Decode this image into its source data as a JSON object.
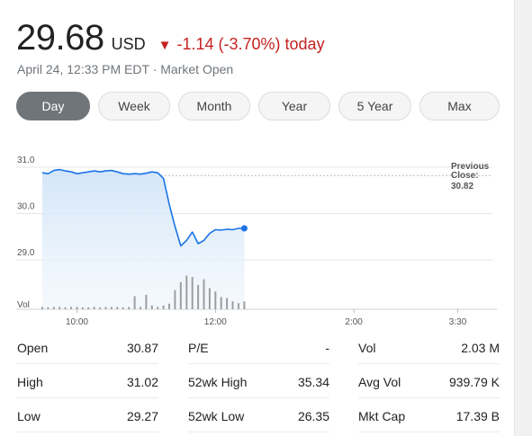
{
  "quote": {
    "price": "29.68",
    "currency": "USD",
    "change": "-1.14 (-3.70%) today",
    "arrow_icon": "triangle-down-icon",
    "timestamp": "April 24, 12:33 PM EDT",
    "separator": " · ",
    "market_status": "Market Open",
    "down_color": "#c5221f"
  },
  "tabs": [
    {
      "label": "Day",
      "active": true
    },
    {
      "label": "Week",
      "active": false
    },
    {
      "label": "Month",
      "active": false
    },
    {
      "label": "Year",
      "active": false
    },
    {
      "label": "5 Year",
      "active": false
    },
    {
      "label": "Max",
      "active": false
    }
  ],
  "chart_data": {
    "type": "line",
    "y_ticks": [
      "31.0",
      "30.0",
      "29.0"
    ],
    "y_tick_values": [
      31.0,
      30.0,
      29.0
    ],
    "x_ticks": [
      "10:00",
      "12:00",
      "2:00",
      "3:30"
    ],
    "x_tick_minutes": [
      600,
      720,
      840,
      930
    ],
    "x_range_minutes": [
      570,
      960
    ],
    "ylim": [
      28.0,
      31.25
    ],
    "vol_label": "Vol",
    "previous_close_label_1": "Previous",
    "previous_close_label_2": "Close:",
    "previous_close_value": "30.82",
    "previous_close": 30.82,
    "line_color": "#1a73e8",
    "series": [
      {
        "x": [
          570,
          575,
          580,
          585,
          590,
          595,
          600,
          605,
          610,
          615,
          620,
          625,
          630,
          635,
          640,
          645,
          650,
          655,
          660,
          665,
          670,
          675,
          680,
          685,
          690,
          695,
          700,
          705,
          710,
          715,
          720,
          725,
          730,
          735,
          740,
          745
        ],
        "y": [
          30.88,
          30.86,
          30.93,
          30.95,
          30.92,
          30.9,
          30.86,
          30.88,
          30.9,
          30.92,
          30.9,
          30.92,
          30.93,
          30.9,
          30.86,
          30.85,
          30.86,
          30.85,
          30.87,
          30.9,
          30.88,
          30.76,
          30.2,
          29.72,
          29.3,
          29.42,
          29.6,
          29.35,
          29.42,
          29.57,
          29.65,
          29.64,
          29.66,
          29.65,
          29.68,
          29.68
        ]
      }
    ],
    "volume": [
      0.05,
      0.04,
      0.05,
      0.05,
      0.04,
      0.05,
      0.05,
      0.04,
      0.04,
      0.05,
      0.04,
      0.05,
      0.05,
      0.05,
      0.04,
      0.05,
      0.28,
      0.05,
      0.31,
      0.08,
      0.05,
      0.08,
      0.12,
      0.41,
      0.58,
      0.72,
      0.69,
      0.52,
      0.64,
      0.45,
      0.38,
      0.26,
      0.24,
      0.17,
      0.13,
      0.17
    ]
  },
  "stats": [
    [
      {
        "label": "Open",
        "value": "30.87"
      },
      {
        "label": "P/E",
        "value": "-"
      },
      {
        "label": "Vol",
        "value": "2.03 M"
      }
    ],
    [
      {
        "label": "High",
        "value": "31.02"
      },
      {
        "label": "52wk High",
        "value": "35.34"
      },
      {
        "label": "Avg Vol",
        "value": "939.79 K"
      }
    ],
    [
      {
        "label": "Low",
        "value": "29.27"
      },
      {
        "label": "52wk Low",
        "value": "26.35"
      },
      {
        "label": "Mkt Cap",
        "value": "17.39 B"
      }
    ]
  ]
}
